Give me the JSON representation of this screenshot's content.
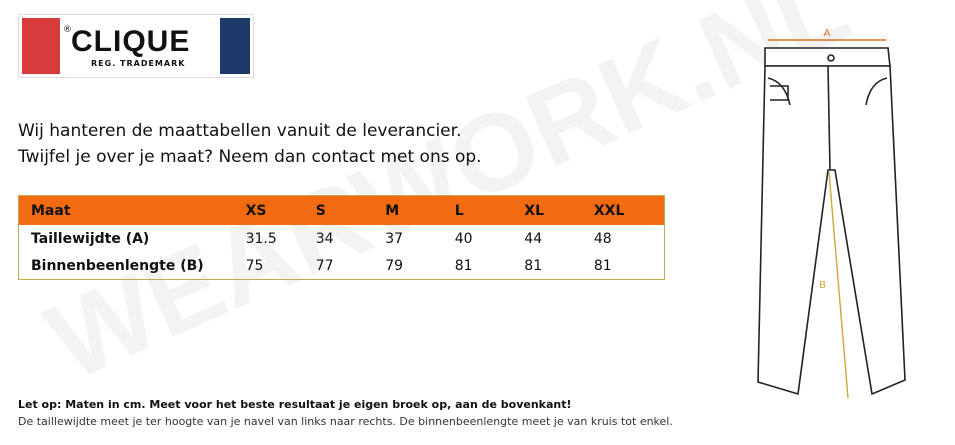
{
  "logo": {
    "mark": "®",
    "name": "CLIQUE",
    "tagline": "REG. TRADEMARK"
  },
  "intro": [
    "Wij hanteren de maattabellen vanuit de leverancier.",
    "Twijfel je over je maat? Neem dan contact met ons op."
  ],
  "table": {
    "header": [
      "Maat",
      "XS",
      "S",
      "M",
      "L",
      "XL",
      "XXL"
    ],
    "rows": [
      [
        "Taillewijdte (A)",
        31.5,
        34,
        37,
        40,
        44,
        48
      ],
      [
        "Binnenbeenlengte (B)",
        75,
        77,
        79,
        81,
        81,
        81
      ]
    ]
  },
  "notes": [
    "Let op: Maten in cm. Meet voor het beste resultaat je eigen broek op, aan de bovenkant!",
    "De taillewijdte meet je ter hoogte van je navel van links naar rechts. De binnenbeenlengte meet je van kruis tot enkel."
  ],
  "watermark": "WEARWORK.NL",
  "diagram": {
    "label_a": "A",
    "label_b": "B"
  }
}
